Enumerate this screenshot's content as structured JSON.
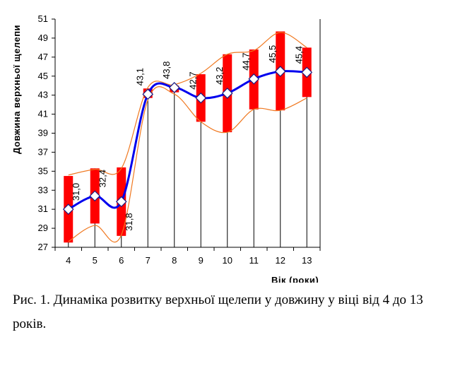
{
  "chart_data": {
    "type": "line",
    "xlabel": "Вік (роки)",
    "ylabel": "Довжина верхньої щелепи",
    "categories": [
      "4",
      "5",
      "6",
      "7",
      "8",
      "9",
      "10",
      "11",
      "12",
      "13"
    ],
    "ylim": [
      27,
      51
    ],
    "yticks": [
      "27",
      "29",
      "31",
      "33",
      "35",
      "37",
      "39",
      "41",
      "43",
      "45",
      "47",
      "49",
      "51"
    ],
    "series": [
      {
        "values": [
          31.0,
          32.4,
          31.8,
          43.1,
          43.8,
          42.7,
          43.2,
          44.7,
          45.5,
          45.4
        ],
        "labels": [
          "31,0",
          "32,4",
          "31,8",
          "43,1",
          "43,8",
          "42,7",
          "43,2",
          "44,7",
          "45,5",
          "45,4"
        ]
      }
    ],
    "ranges": {
      "low": [
        27.5,
        29.5,
        28.2,
        42.7,
        43.3,
        40.2,
        39.1,
        41.5,
        41.4,
        42.8
      ],
      "high": [
        34.5,
        35.3,
        35.4,
        43.7,
        44.0,
        45.2,
        47.3,
        47.8,
        49.7,
        48.0
      ]
    },
    "envelope": {
      "upper": [
        34.6,
        35.2,
        35.3,
        43.8,
        44.1,
        45.3,
        47.3,
        47.7,
        49.6,
        48.0
      ],
      "lower": [
        27.6,
        29.3,
        28.3,
        42.5,
        43.1,
        40.2,
        39.1,
        41.5,
        41.4,
        42.7
      ]
    },
    "whisker_bottom": 27,
    "grid": false,
    "colors": {
      "line": "#0000ee",
      "bar": "#ff0000",
      "envelope": "#f07820",
      "marker": "#ffffff"
    }
  },
  "caption": "Рис. 1. Динаміка розвитку верхньої щелепи у довжину у віці від 4 до 13 років."
}
